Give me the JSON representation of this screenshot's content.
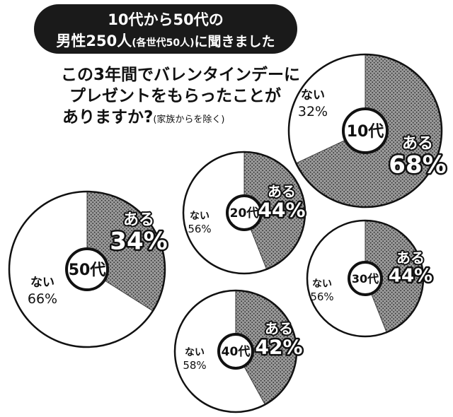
{
  "header": {
    "banner_line1": "10代から50代の",
    "banner_line2_main": "男性250人",
    "banner_line2_paren": "(各世代50人)",
    "banner_line2_tail": "に聞きました",
    "question_line1": "この3年間でバレンタインデーに",
    "question_line2": "プレゼントをもらったことが",
    "question_line3": "ありますか?",
    "question_note": "(家族からを除く)"
  },
  "colors": {
    "yes_fill": "#8a8a8a",
    "no_fill": "#ffffff",
    "outline": "#111111",
    "banner_bg": "#1a1a1a",
    "banner_text": "#ffffff",
    "text": "#111111"
  },
  "chart_data": {
    "type": "pie",
    "title": "この3年間でバレンタインデーにプレゼントをもらったことがありますか?(家族からを除く)",
    "categories": [
      "ある",
      "ない"
    ],
    "charts": [
      {
        "label": "10代",
        "yes_label": "ある",
        "yes_value": 68,
        "no_label": "ない",
        "no_value": 32
      },
      {
        "label": "20代",
        "yes_label": "ある",
        "yes_value": 44,
        "no_label": "ない",
        "no_value": 56
      },
      {
        "label": "30代",
        "yes_label": "ある",
        "yes_value": 44,
        "no_label": "ない",
        "no_value": 56
      },
      {
        "label": "40代",
        "yes_label": "ある",
        "yes_value": 42,
        "no_label": "ない",
        "no_value": 58
      },
      {
        "label": "50代",
        "yes_label": "ある",
        "yes_value": 34,
        "no_label": "ない",
        "no_value": 66
      }
    ],
    "unit": "%"
  }
}
